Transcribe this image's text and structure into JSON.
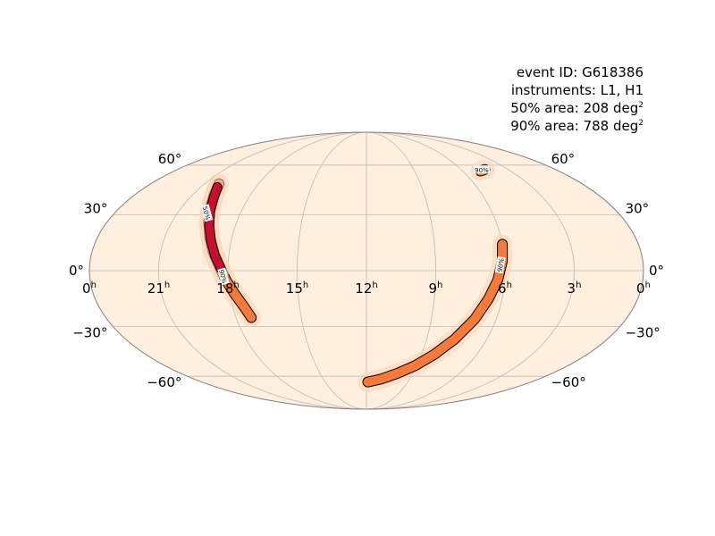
{
  "chart_data": {
    "type": "heatmap",
    "projection": "mollweide",
    "annotations": {
      "event_id": "event ID: G618386",
      "instruments": "instruments: L1, H1",
      "area50_prefix": "50% area: 208 deg",
      "area90_prefix": "90% area: 788 deg",
      "area_superscript": "2"
    },
    "ra_labels": [
      {
        "ra": 0,
        "text": "0",
        "side": "right"
      },
      {
        "ra": 3,
        "text": "3"
      },
      {
        "ra": 6,
        "text": "6"
      },
      {
        "ra": 9,
        "text": "9"
      },
      {
        "ra": 12,
        "text": "12"
      },
      {
        "ra": 15,
        "text": "15"
      },
      {
        "ra": 18,
        "text": "18"
      },
      {
        "ra": 21,
        "text": "21"
      },
      {
        "ra": 24,
        "text": "0",
        "side": "left"
      }
    ],
    "ra_unit": "h",
    "dec_labels": [
      {
        "dec": 60,
        "text": "60°"
      },
      {
        "dec": 30,
        "text": "30°"
      },
      {
        "dec": 0,
        "text": "0°"
      },
      {
        "dec": -30,
        "text": "−30°"
      },
      {
        "dec": -60,
        "text": "−60°"
      }
    ],
    "contour_labels": {
      "c50": "50%",
      "c90": "90%"
    },
    "regions": [
      {
        "name": "arc-east",
        "level": 90,
        "ra": [
          6.0,
          6.1,
          6.3,
          6.6,
          7.0,
          7.6,
          8.3,
          9.1,
          10.0,
          11.0,
          11.9
        ],
        "dec": [
          14,
          5,
          -5,
          -15,
          -26,
          -37,
          -46,
          -53,
          -58,
          -62,
          -64
        ]
      },
      {
        "name": "arc-west",
        "level": 90,
        "ra": [
          20.2,
          19.9,
          19.6,
          19.3,
          19.0,
          18.7,
          18.4,
          18.1,
          17.8,
          17.5,
          17.3
        ],
        "dec": [
          48,
          42,
          34,
          26,
          18,
          10,
          3,
          -5,
          -12,
          -19,
          -25
        ]
      },
      {
        "name": "arc-west-core",
        "level": 50,
        "ra": [
          20.1,
          19.8,
          19.5,
          19.2,
          18.9,
          18.6,
          18.3
        ],
        "dec": [
          46,
          40,
          32,
          24,
          16,
          8,
          1
        ]
      },
      {
        "name": "arc-north-tip",
        "level": 90,
        "ra": [
          4.9,
          4.5
        ],
        "dec": [
          56,
          57
        ]
      }
    ],
    "colors": {
      "background": "#feefdf",
      "level90": "#f47a3c",
      "level50": "#c8102e",
      "halo": "#fbd2b3",
      "grid": "#bbbbbb",
      "outline": "#808080",
      "contour": "#000000"
    }
  }
}
